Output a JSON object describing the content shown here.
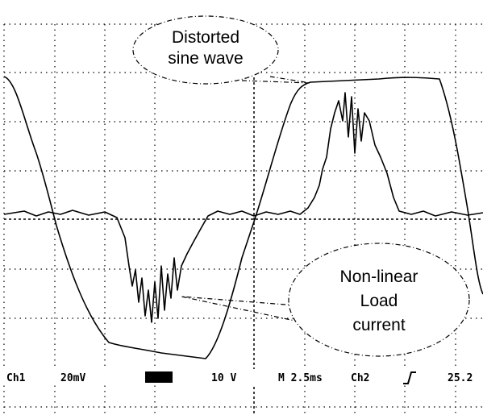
{
  "callouts": [
    {
      "lines": [
        "Distorted",
        "sine wave"
      ]
    },
    {
      "lines": [
        "Non-linear",
        "Load",
        "current"
      ]
    }
  ],
  "status_bar": {
    "ch1": "Ch1",
    "ch1_scale": "20mV",
    "ch2_scale": "10 V",
    "timebase": "M 2.5ms",
    "trigger_source": "Ch2",
    "trigger_level": "25.2"
  }
}
